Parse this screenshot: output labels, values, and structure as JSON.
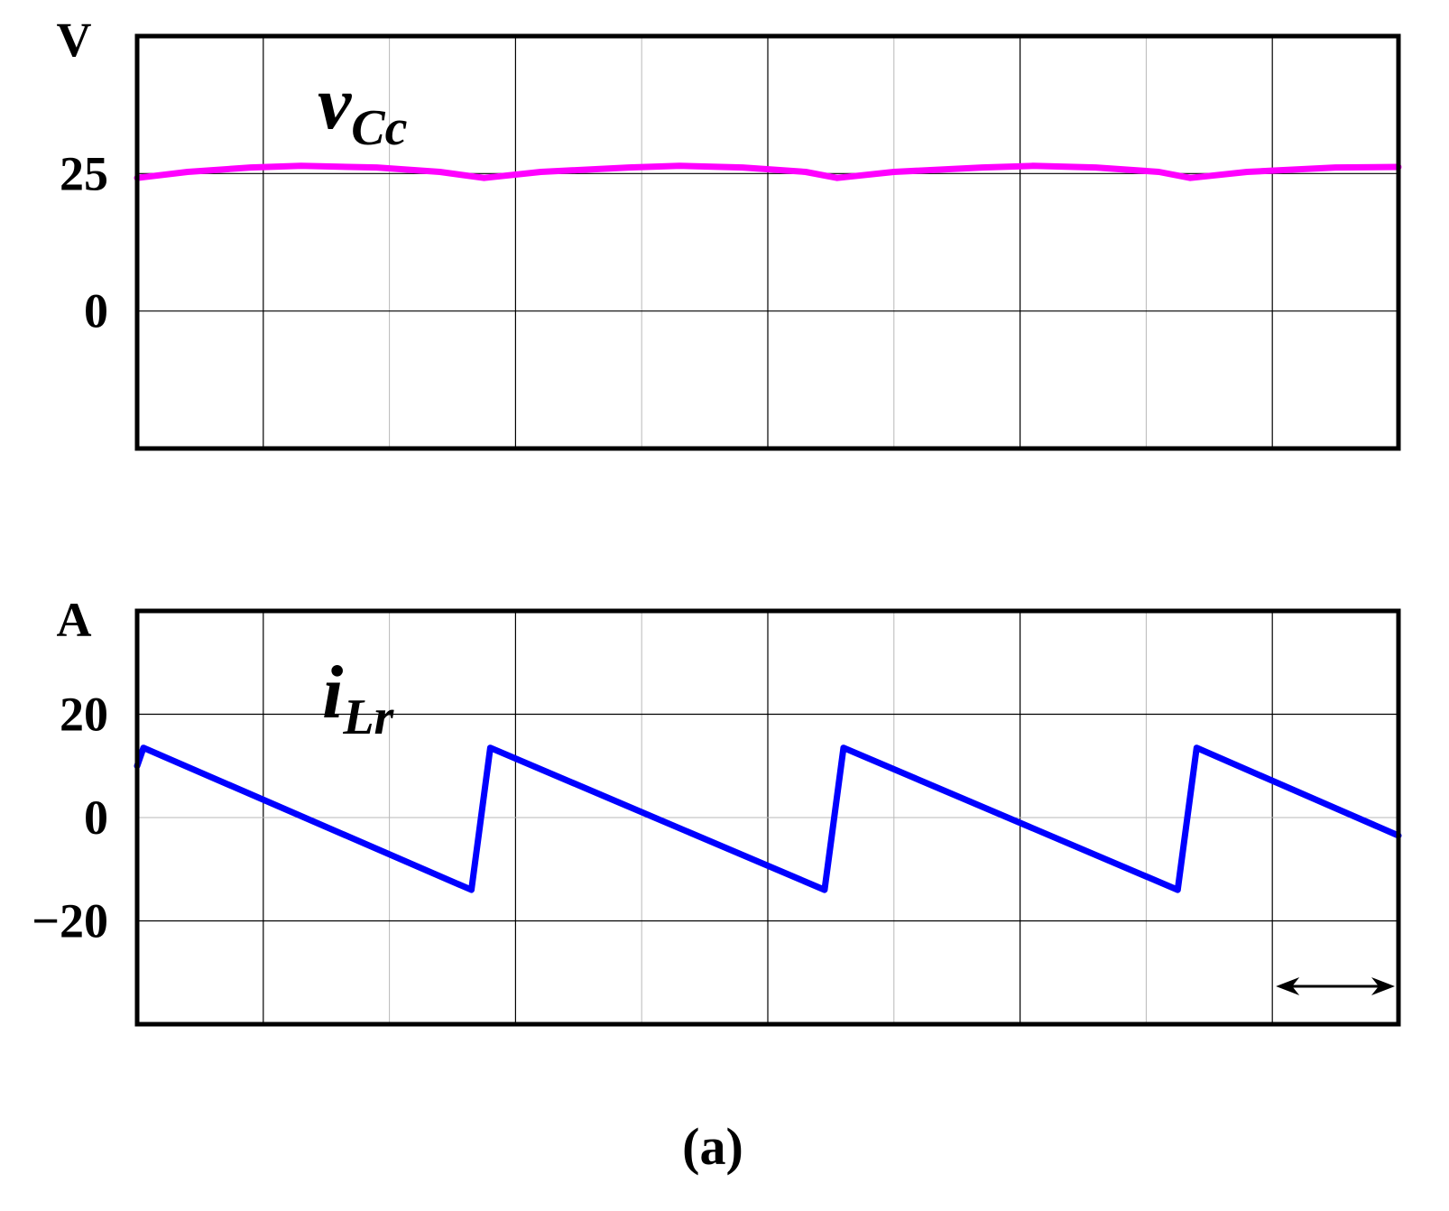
{
  "caption": "(a)",
  "chart_data": [
    {
      "type": "line",
      "unit_label": "V",
      "trace_label": {
        "main": "v",
        "sub": "Cc"
      },
      "yticks": [
        {
          "value": 25,
          "label": "25"
        },
        {
          "value": 0,
          "label": "0"
        }
      ],
      "ylim": [
        -25,
        50
      ],
      "xlim": [
        0,
        10
      ],
      "x_divisions": 10,
      "grid": true,
      "color": "#ff00ff",
      "series": [
        {
          "x": [
            0,
            0.4,
            0.9,
            1.3,
            1.9,
            2.4,
            2.75,
            3.2,
            3.9,
            4.3,
            4.8,
            5.3,
            5.55,
            6.0,
            6.7,
            7.1,
            7.6,
            8.1,
            8.35,
            8.8,
            9.5,
            10
          ],
          "y": [
            24.2,
            25.3,
            26.1,
            26.4,
            26.1,
            25.3,
            24.2,
            25.3,
            26.1,
            26.4,
            26.1,
            25.3,
            24.2,
            25.3,
            26.1,
            26.4,
            26.1,
            25.3,
            24.2,
            25.3,
            26.1,
            26.2
          ]
        }
      ]
    },
    {
      "type": "line",
      "unit_label": "A",
      "trace_label": {
        "main": "i",
        "sub": "Lr"
      },
      "yticks": [
        {
          "value": 20,
          "label": "20"
        },
        {
          "value": 0,
          "label": "0"
        },
        {
          "value": -20,
          "label": "−20"
        }
      ],
      "ylim": [
        -40,
        40
      ],
      "xlim": [
        0,
        10
      ],
      "x_divisions": 10,
      "grid": true,
      "color": "#0000ff",
      "series": [
        {
          "x": [
            0,
            0.05,
            2.65,
            2.8,
            5.45,
            5.6,
            8.25,
            8.4,
            10
          ],
          "y": [
            10,
            13.5,
            -14,
            13.5,
            -14,
            13.5,
            -14,
            13.5,
            -3.5
          ]
        }
      ]
    }
  ],
  "scale_marker": {
    "from_division": 9,
    "to_division": 10
  }
}
